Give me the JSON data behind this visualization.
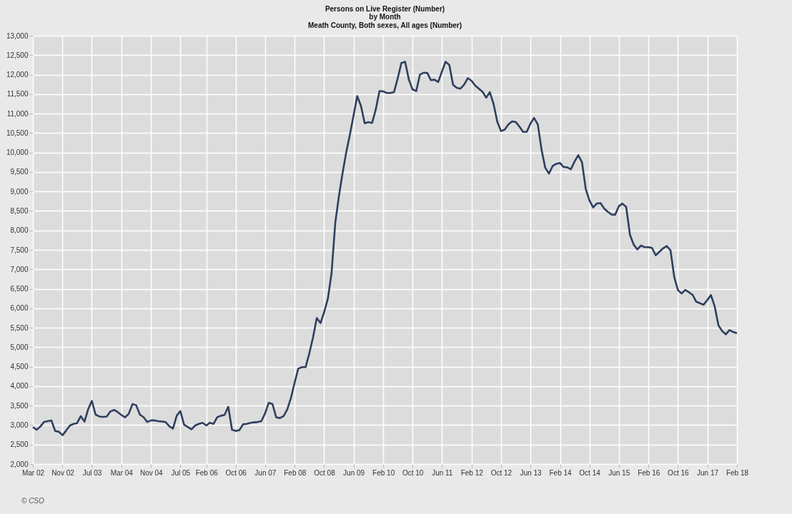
{
  "chart_data": {
    "type": "line",
    "title": "Persons on Live Register (Number)",
    "subtitle": "by Month\nMeath County, Both sexes, All ages (Number)",
    "annotations": [
      "© CSO"
    ],
    "grid": true,
    "marker": "none",
    "line_style": "solid",
    "ylim": [
      2000,
      13000
    ],
    "yticks": [
      {
        "value": 2000,
        "label": "2,000"
      },
      {
        "value": 2500,
        "label": "2,500"
      },
      {
        "value": 3000,
        "label": "3,000"
      },
      {
        "value": 3500,
        "label": "3,500"
      },
      {
        "value": 4000,
        "label": "4,000"
      },
      {
        "value": 4500,
        "label": "4,500"
      },
      {
        "value": 5000,
        "label": "5,000"
      },
      {
        "value": 5500,
        "label": "5,500"
      },
      {
        "value": 6000,
        "label": "6,000"
      },
      {
        "value": 6500,
        "label": "6,500"
      },
      {
        "value": 7000,
        "label": "7,000"
      },
      {
        "value": 7500,
        "label": "7,500"
      },
      {
        "value": 8000,
        "label": "8,000"
      },
      {
        "value": 8500,
        "label": "8,500"
      },
      {
        "value": 9000,
        "label": "9,000"
      },
      {
        "value": 9500,
        "label": "9,500"
      },
      {
        "value": 10000,
        "label": "10,000"
      },
      {
        "value": 10500,
        "label": "10,500"
      },
      {
        "value": 11000,
        "label": "11,000"
      },
      {
        "value": 11500,
        "label": "11,500"
      },
      {
        "value": 12000,
        "label": "12,000"
      },
      {
        "value": 12500,
        "label": "12,500"
      },
      {
        "value": 13000,
        "label": "13,000"
      }
    ],
    "xlim": [
      "2002-03",
      "2018-02"
    ],
    "xticks": [
      {
        "value": "2002-03",
        "label": "Mar 02"
      },
      {
        "value": "2002-11",
        "label": "Nov 02"
      },
      {
        "value": "2003-07",
        "label": "Jul 03"
      },
      {
        "value": "2004-03",
        "label": "Mar 04"
      },
      {
        "value": "2004-11",
        "label": "Nov 04"
      },
      {
        "value": "2005-07",
        "label": "Jul 05"
      },
      {
        "value": "2006-02",
        "label": "Feb 06"
      },
      {
        "value": "2006-10",
        "label": "Oct 06"
      },
      {
        "value": "2007-06",
        "label": "Jun 07"
      },
      {
        "value": "2008-02",
        "label": "Feb 08"
      },
      {
        "value": "2008-10",
        "label": "Oct 08"
      },
      {
        "value": "2009-06",
        "label": "Jun 09"
      },
      {
        "value": "2010-02",
        "label": "Feb 10"
      },
      {
        "value": "2010-10",
        "label": "Oct 10"
      },
      {
        "value": "2011-06",
        "label": "Jun 11"
      },
      {
        "value": "2012-02",
        "label": "Feb 12"
      },
      {
        "value": "2012-10",
        "label": "Oct 12"
      },
      {
        "value": "2013-06",
        "label": "Jun 13"
      },
      {
        "value": "2014-02",
        "label": "Feb 14"
      },
      {
        "value": "2014-10",
        "label": "Oct 14"
      },
      {
        "value": "2015-06",
        "label": "Jun 15"
      },
      {
        "value": "2016-02",
        "label": "Feb 16"
      },
      {
        "value": "2016-10",
        "label": "Oct 16"
      },
      {
        "value": "2017-06",
        "label": "Jun 17"
      },
      {
        "value": "2018-02",
        "label": "Feb 18"
      }
    ],
    "x": [
      "2002-03",
      "2002-04",
      "2002-05",
      "2002-06",
      "2002-07",
      "2002-08",
      "2002-09",
      "2002-10",
      "2002-11",
      "2002-12",
      "2003-01",
      "2003-02",
      "2003-03",
      "2003-04",
      "2003-05",
      "2003-06",
      "2003-07",
      "2003-08",
      "2003-09",
      "2003-10",
      "2003-11",
      "2003-12",
      "2004-01",
      "2004-02",
      "2004-03",
      "2004-04",
      "2004-05",
      "2004-06",
      "2004-07",
      "2004-08",
      "2004-09",
      "2004-10",
      "2004-11",
      "2004-12",
      "2005-01",
      "2005-02",
      "2005-03",
      "2005-04",
      "2005-05",
      "2005-06",
      "2005-07",
      "2005-08",
      "2005-09",
      "2005-10",
      "2005-11",
      "2005-12",
      "2006-01",
      "2006-02",
      "2006-03",
      "2006-04",
      "2006-05",
      "2006-06",
      "2006-07",
      "2006-08",
      "2006-09",
      "2006-10",
      "2006-11",
      "2006-12",
      "2007-01",
      "2007-02",
      "2007-03",
      "2007-04",
      "2007-05",
      "2007-06",
      "2007-07",
      "2007-08",
      "2007-09",
      "2007-10",
      "2007-11",
      "2007-12",
      "2008-01",
      "2008-02",
      "2008-03",
      "2008-04",
      "2008-05",
      "2008-06",
      "2008-07",
      "2008-08",
      "2008-09",
      "2008-10",
      "2008-11",
      "2008-12",
      "2009-01",
      "2009-02",
      "2009-03",
      "2009-04",
      "2009-05",
      "2009-06",
      "2009-07",
      "2009-08",
      "2009-09",
      "2009-10",
      "2009-11",
      "2009-12",
      "2010-01",
      "2010-02",
      "2010-03",
      "2010-04",
      "2010-05",
      "2010-06",
      "2010-07",
      "2010-08",
      "2010-09",
      "2010-10",
      "2010-11",
      "2010-12",
      "2011-01",
      "2011-02",
      "2011-03",
      "2011-04",
      "2011-05",
      "2011-06",
      "2011-07",
      "2011-08",
      "2011-09",
      "2011-10",
      "2011-11",
      "2011-12",
      "2012-01",
      "2012-02",
      "2012-03",
      "2012-04",
      "2012-05",
      "2012-06",
      "2012-07",
      "2012-08",
      "2012-09",
      "2012-10",
      "2012-11",
      "2012-12",
      "2013-01",
      "2013-02",
      "2013-03",
      "2013-04",
      "2013-05",
      "2013-06",
      "2013-07",
      "2013-08",
      "2013-09",
      "2013-10",
      "2013-11",
      "2013-12",
      "2014-01",
      "2014-02",
      "2014-03",
      "2014-04",
      "2014-05",
      "2014-06",
      "2014-07",
      "2014-08",
      "2014-09",
      "2014-10",
      "2014-11",
      "2014-12",
      "2015-01",
      "2015-02",
      "2015-03",
      "2015-04",
      "2015-05",
      "2015-06",
      "2015-07",
      "2015-08",
      "2015-09",
      "2015-10",
      "2015-11",
      "2015-12",
      "2016-01",
      "2016-02",
      "2016-03",
      "2016-04",
      "2016-05",
      "2016-06",
      "2016-07",
      "2016-08",
      "2016-09",
      "2016-10",
      "2016-11",
      "2016-12",
      "2017-01",
      "2017-02",
      "2017-03",
      "2017-04",
      "2017-05",
      "2017-06",
      "2017-07",
      "2017-08",
      "2017-09",
      "2017-10",
      "2017-11",
      "2017-12",
      "2018-01",
      "2018-02"
    ],
    "series": [
      {
        "color": "#2e3f5e",
        "values": [
          2950,
          2880,
          2960,
          3080,
          3100,
          3120,
          2850,
          2830,
          2740,
          2860,
          2990,
          3030,
          3050,
          3230,
          3090,
          3410,
          3620,
          3270,
          3220,
          3210,
          3220,
          3350,
          3390,
          3330,
          3260,
          3200,
          3290,
          3540,
          3510,
          3270,
          3200,
          3080,
          3120,
          3120,
          3100,
          3090,
          3080,
          2970,
          2910,
          3240,
          3360,
          3010,
          2950,
          2890,
          2990,
          3030,
          3060,
          2990,
          3060,
          3030,
          3200,
          3240,
          3260,
          3470,
          2880,
          2850,
          2870,
          3020,
          3030,
          3060,
          3070,
          3080,
          3100,
          3300,
          3570,
          3540,
          3200,
          3180,
          3230,
          3400,
          3700,
          4100,
          4450,
          4490,
          4490,
          4850,
          5250,
          5750,
          5620,
          5900,
          6250,
          6900,
          8200,
          8900,
          9450,
          10000,
          10450,
          10950,
          11450,
          11200,
          10750,
          10780,
          10760,
          11100,
          11580,
          11570,
          11530,
          11530,
          11550,
          11910,
          12300,
          12330,
          11870,
          11620,
          11580,
          12000,
          12050,
          12040,
          11860,
          11870,
          11810,
          12080,
          12330,
          12250,
          11740,
          11660,
          11640,
          11740,
          11910,
          11840,
          11720,
          11640,
          11560,
          11410,
          11550,
          11240,
          10780,
          10550,
          10590,
          10720,
          10800,
          10780,
          10670,
          10530,
          10530,
          10740,
          10890,
          10720,
          10070,
          9610,
          9460,
          9650,
          9710,
          9730,
          9630,
          9620,
          9570,
          9770,
          9930,
          9750,
          9060,
          8770,
          8590,
          8690,
          8700,
          8560,
          8480,
          8410,
          8400,
          8620,
          8690,
          8600,
          7890,
          7640,
          7510,
          7610,
          7570,
          7570,
          7550,
          7360,
          7450,
          7540,
          7600,
          7490,
          6800,
          6470,
          6380,
          6470,
          6410,
          6340,
          6170,
          6130,
          6090,
          6210,
          6340,
          6050,
          5560,
          5420,
          5330,
          5440,
          5390,
          5360
        ]
      }
    ]
  }
}
